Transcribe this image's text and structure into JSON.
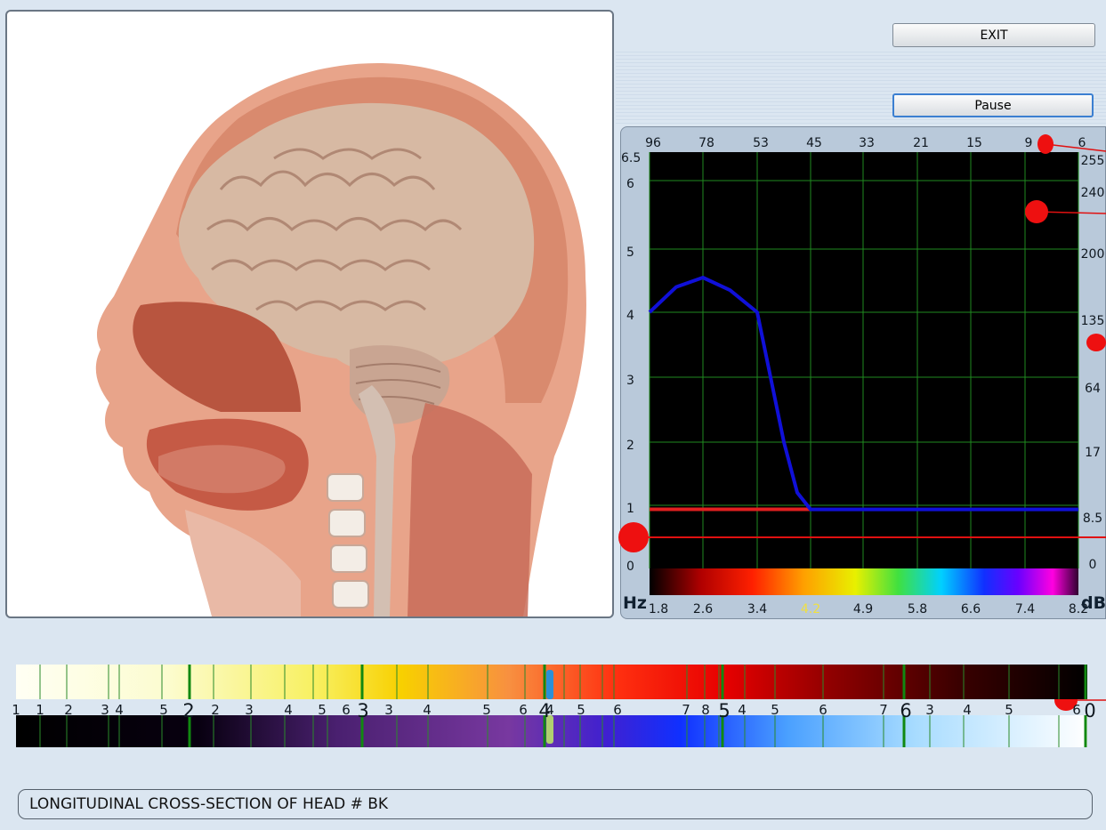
{
  "buttons": {
    "exit_label": "EXIT",
    "pause_label": "Pause"
  },
  "image": {
    "icon_name": "head-cross-section-image"
  },
  "spectrum": {
    "top_ticks": [
      "96",
      "78",
      "53",
      "45",
      "33",
      "21",
      "15",
      "9",
      "6"
    ],
    "left_ticks": [
      "6.5",
      "6",
      "5",
      "4",
      "3",
      "2",
      "1",
      "0"
    ],
    "right_ticks": [
      "255",
      "240",
      "200",
      "135",
      "64",
      "17",
      "8.5",
      "0"
    ],
    "bottom_ticks": [
      "1.8",
      "2.6",
      "3.4",
      "4.2",
      "4.9",
      "5.8",
      "6.6",
      "7.4",
      "8.2"
    ],
    "highlight_bottom_index": 3,
    "unit_left": "Hz",
    "unit_right": "dB",
    "colors": {
      "curve": "#1010d8",
      "baseline": "#e02020",
      "grid": "#1f8a1f",
      "highlight_tick": "#f0e040"
    }
  },
  "chart_data": {
    "type": "line",
    "x_ticks_bottom": [
      1.8,
      2.6,
      3.4,
      4.2,
      4.9,
      5.8,
      6.6,
      7.4,
      8.2
    ],
    "x_ticks_top": [
      96,
      78,
      53,
      45,
      33,
      21,
      15,
      9,
      6
    ],
    "y_ticks_left": [
      0,
      1,
      2,
      3,
      4,
      5,
      6,
      6.5
    ],
    "y_ticks_right": [
      0,
      8.5,
      17,
      64,
      135,
      200,
      240,
      255
    ],
    "ylim": [
      0,
      6.5
    ],
    "xlabel": "Hz",
    "ylabel": "dB",
    "grid": true,
    "series": [
      {
        "x": [
          1.8,
          2.2,
          2.6,
          3.0,
          3.4,
          3.6,
          3.8,
          4.0,
          4.2,
          4.9,
          5.8,
          6.6,
          7.4,
          8.2
        ],
        "y": [
          4.0,
          4.4,
          4.55,
          4.35,
          4.0,
          3.0,
          2.0,
          1.2,
          0.93,
          0.93,
          0.93,
          0.93,
          0.93,
          0.93
        ]
      },
      {
        "x": [
          1.8,
          4.2
        ],
        "y": [
          0.93,
          0.93
        ]
      }
    ]
  },
  "scale": {
    "labels": [
      "1",
      "1",
      "2",
      "3",
      "4",
      "5",
      "2",
      "2",
      "3",
      "4",
      "5",
      "6",
      "3",
      "3",
      "4",
      "5",
      "6",
      "4",
      "4",
      "5",
      "6",
      "7",
      "8",
      "5",
      "4",
      "5",
      "6",
      "7",
      "6",
      "3",
      "4",
      "5",
      "6",
      "0"
    ]
  },
  "status": {
    "text": "LONGITUDINAL CROSS-SECTION OF HEAD # BK"
  }
}
